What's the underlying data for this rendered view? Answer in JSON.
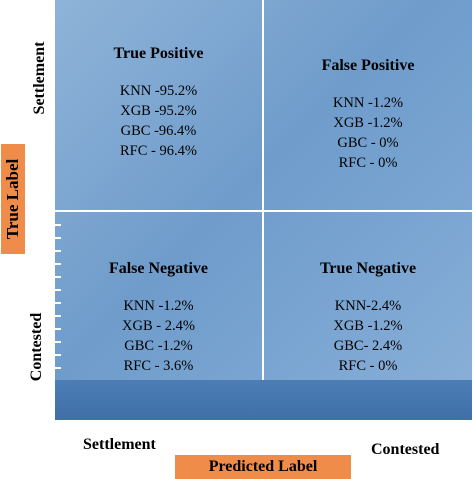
{
  "axes": {
    "y_label": "True Label",
    "x_label": "Predicted Label",
    "y_top": "Settlement",
    "y_bottom": "Contested",
    "x_left": "Settlement",
    "x_right": "Contested"
  },
  "cells": {
    "tp": {
      "title": "True Positive",
      "lines": [
        "KNN -95.2%",
        "XGB -95.2%",
        "GBC -96.4%",
        "RFC - 96.4%"
      ]
    },
    "fp": {
      "title": "False Positive",
      "lines": [
        "KNN -1.2%",
        "XGB -1.2%",
        "GBC - 0%",
        "RFC - 0%"
      ]
    },
    "fn": {
      "title": "False Negative",
      "lines": [
        "KNN -1.2%",
        "XGB - 2.4%",
        "GBC -1.2%",
        "RFC -  3.6%"
      ]
    },
    "tn": {
      "title": "True Negative",
      "lines": [
        "KNN-2.4%",
        "XGB -1.2%",
        "GBC- 2.4%",
        "RFC - 0%"
      ]
    }
  },
  "colors": {
    "matrix": "#7aa5d2",
    "accent": "#f08c4a",
    "band": "#3f6fa6"
  }
}
